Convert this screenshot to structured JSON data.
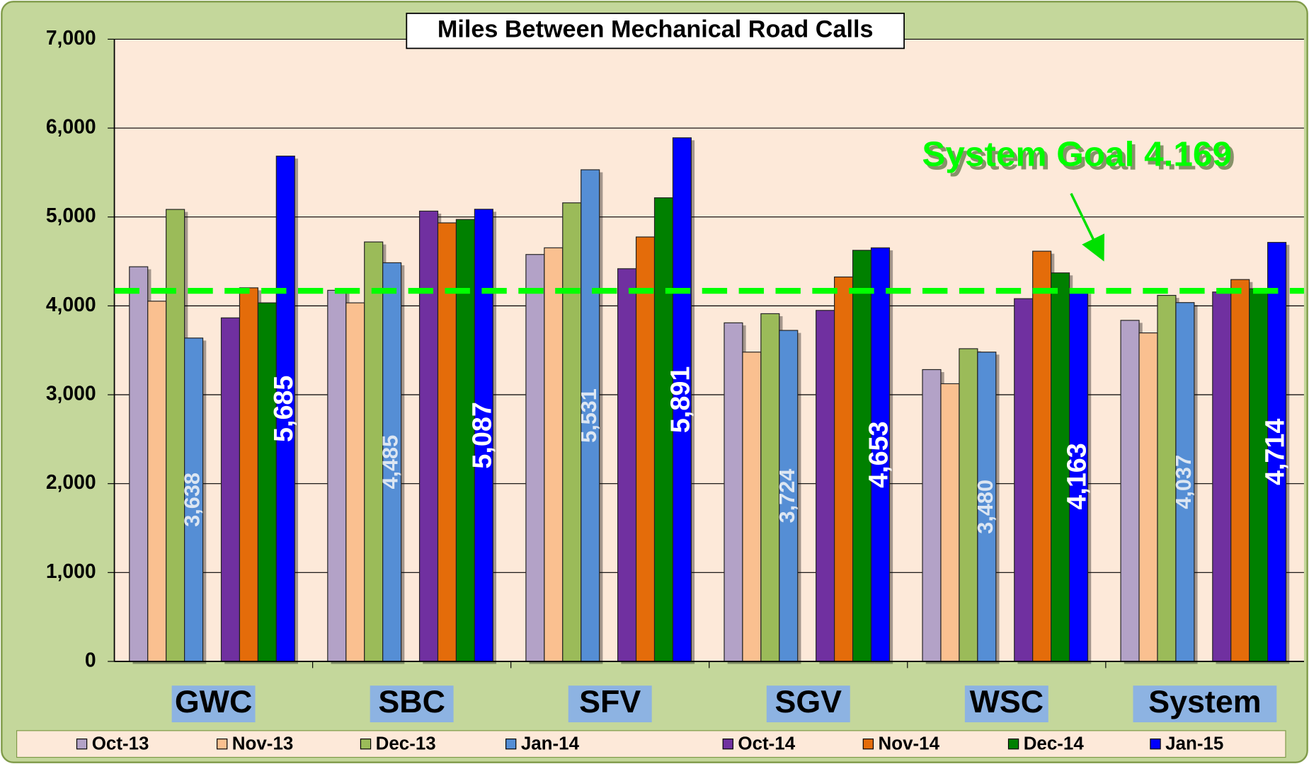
{
  "chart_data": {
    "type": "bar",
    "title": "Miles Between Mechanical Road Calls",
    "categories": [
      "GWC",
      "SBC",
      "SFV",
      "SGV",
      "WSC",
      "System"
    ],
    "series": [
      {
        "name": "Oct-13",
        "color": "#b3a2c7",
        "values": [
          4440,
          4175,
          4578,
          3809,
          3283,
          3837
        ]
      },
      {
        "name": "Nov-13",
        "color": "#fac090",
        "values": [
          4053,
          4034,
          4653,
          3480,
          3124,
          3696
        ]
      },
      {
        "name": "Dec-13",
        "color": "#9bbb59",
        "values": [
          5085,
          4719,
          5159,
          3912,
          3518,
          4118
        ]
      },
      {
        "name": "Jan-14",
        "color": "#558ed5",
        "values": [
          3638,
          4485,
          5531,
          3724,
          3480,
          4037
        ],
        "value_labels": [
          "3,638",
          "4,485",
          "5,531",
          "3,724",
          "3,480",
          "4,037"
        ]
      },
      {
        "name": "Oct-14",
        "color": "#7030a0",
        "values": [
          3865,
          5066,
          4418,
          3949,
          4081,
          4156
        ]
      },
      {
        "name": "Nov-14",
        "color": "#e46c0a",
        "values": [
          4203,
          4934,
          4775,
          4325,
          4615,
          4296
        ]
      },
      {
        "name": "Dec-14",
        "color": "#008000",
        "values": [
          4034,
          4972,
          5216,
          4625,
          4371,
          4193
        ]
      },
      {
        "name": "Jan-15",
        "color": "#0000ff",
        "values": [
          5685,
          5087,
          5891,
          4653,
          4163,
          4714
        ],
        "value_labels": [
          "5,685",
          "5,087",
          "5,891",
          "4,653",
          "4,163",
          "4,714"
        ]
      }
    ],
    "ylim": [
      0,
      7000
    ],
    "yticks": [
      0,
      {
        "value": 1000,
        "label": "1,000"
      },
      {
        "value": 2000,
        "label": "2,000"
      },
      {
        "value": 3000,
        "label": "3,000"
      },
      {
        "value": 4000,
        "label": "4,000"
      },
      {
        "value": 5000,
        "label": "5,000"
      },
      {
        "value": 6000,
        "label": "6,000"
      },
      {
        "value": 7000,
        "label": "7,000"
      }
    ],
    "grid": true,
    "goal": {
      "value": 4169,
      "label": "System Goal 4.169",
      "color": "#00ff00"
    }
  }
}
